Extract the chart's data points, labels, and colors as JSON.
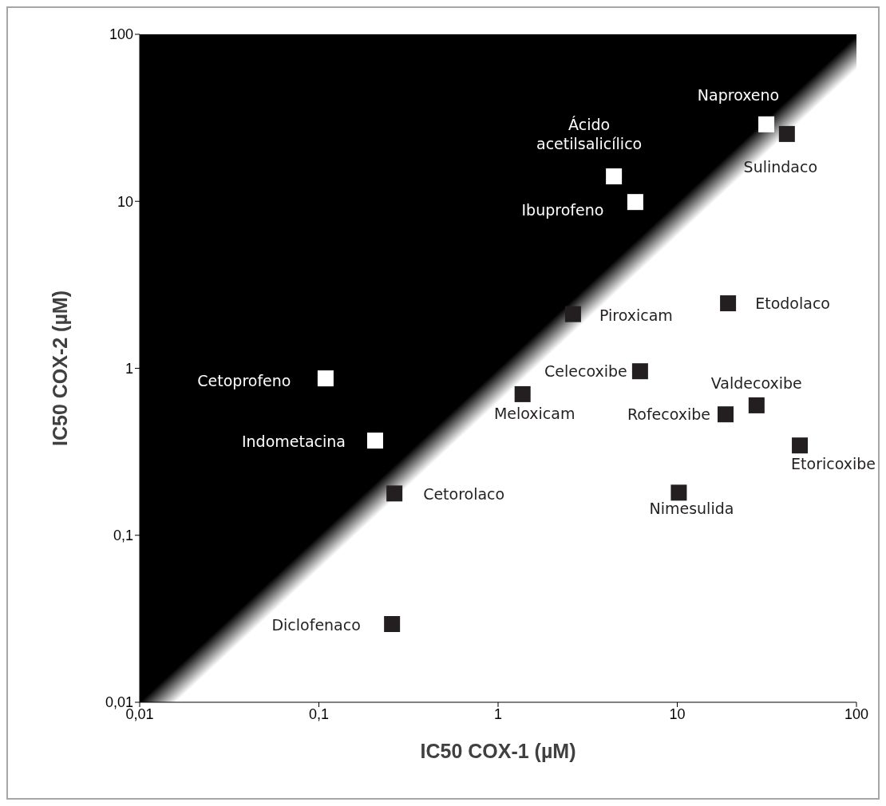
{
  "chart_data": {
    "type": "scatter",
    "xlabel": "IC50 COX-1 (µM)",
    "ylabel": "IC50 COX-2 (µM)",
    "log": "xy",
    "grid": false,
    "legend": false,
    "xlim": [
      0.01,
      100
    ],
    "ylim": [
      0.01,
      100
    ],
    "xticks": [
      {
        "value": 0.01,
        "label": "0,01"
      },
      {
        "value": 0.1,
        "label": "0,1"
      },
      1,
      10,
      100
    ],
    "yticks": [
      {
        "value": 0.01,
        "label": "0,01"
      },
      {
        "value": 0.1,
        "label": "0,1"
      },
      1,
      10,
      100
    ],
    "series": [
      {
        "type": "area",
        "color": "#ffffff",
        "x": [
          0.01,
          100
        ],
        "values": [
          0.0174,
          98
        ]
      },
      {
        "color": "#ffffff",
        "marker": "square",
        "x": [
          31.4,
          4.43,
          5.83,
          0.109,
          0.206
        ],
        "values": [
          28.9,
          14.1,
          9.9,
          0.87,
          0.369
        ]
      },
      {
        "color": "#231f20",
        "marker": "square",
        "x": [
          40.9,
          19.2,
          2.62,
          6.2,
          1.37,
          27.7,
          18.6,
          48.3,
          0.264,
          10.2,
          0.256
        ],
        "values": [
          25.3,
          2.45,
          2.11,
          0.96,
          0.7,
          0.6,
          0.53,
          0.345,
          0.178,
          0.18,
          0.0294
        ]
      }
    ],
    "annotations": [
      {
        "text": "Naproxeno",
        "x": 31.4,
        "y": 28.9
      },
      {
        "text": "Sulindaco",
        "x": 40.9,
        "y": 25.3
      },
      {
        "text": "Ácido\nacetilsalicílico",
        "x": 4.43,
        "y": 14.1
      },
      {
        "text": "Ibuprofeno",
        "x": 5.83,
        "y": 9.9
      },
      {
        "text": "Etodolaco",
        "x": 19.2,
        "y": 2.45
      },
      {
        "text": "Piroxicam",
        "x": 2.62,
        "y": 2.11
      },
      {
        "text": "Celecoxibe",
        "x": 6.2,
        "y": 0.96
      },
      {
        "text": "Cetoprofeno",
        "x": 0.109,
        "y": 0.87
      },
      {
        "text": "Meloxicam",
        "x": 1.37,
        "y": 0.7
      },
      {
        "text": "Valdecoxibe",
        "x": 27.7,
        "y": 0.6
      },
      {
        "text": "Rofecoxibe",
        "x": 18.6,
        "y": 0.53
      },
      {
        "text": "Indometacina",
        "x": 0.206,
        "y": 0.369
      },
      {
        "text": "Etoricoxibe",
        "x": 48.3,
        "y": 0.345
      },
      {
        "text": "Cetorolaco",
        "x": 0.264,
        "y": 0.178
      },
      {
        "text": "Nimesulida",
        "x": 10.2,
        "y": 0.18
      },
      {
        "text": "Diclofenaco",
        "x": 0.256,
        "y": 0.0294
      }
    ]
  }
}
